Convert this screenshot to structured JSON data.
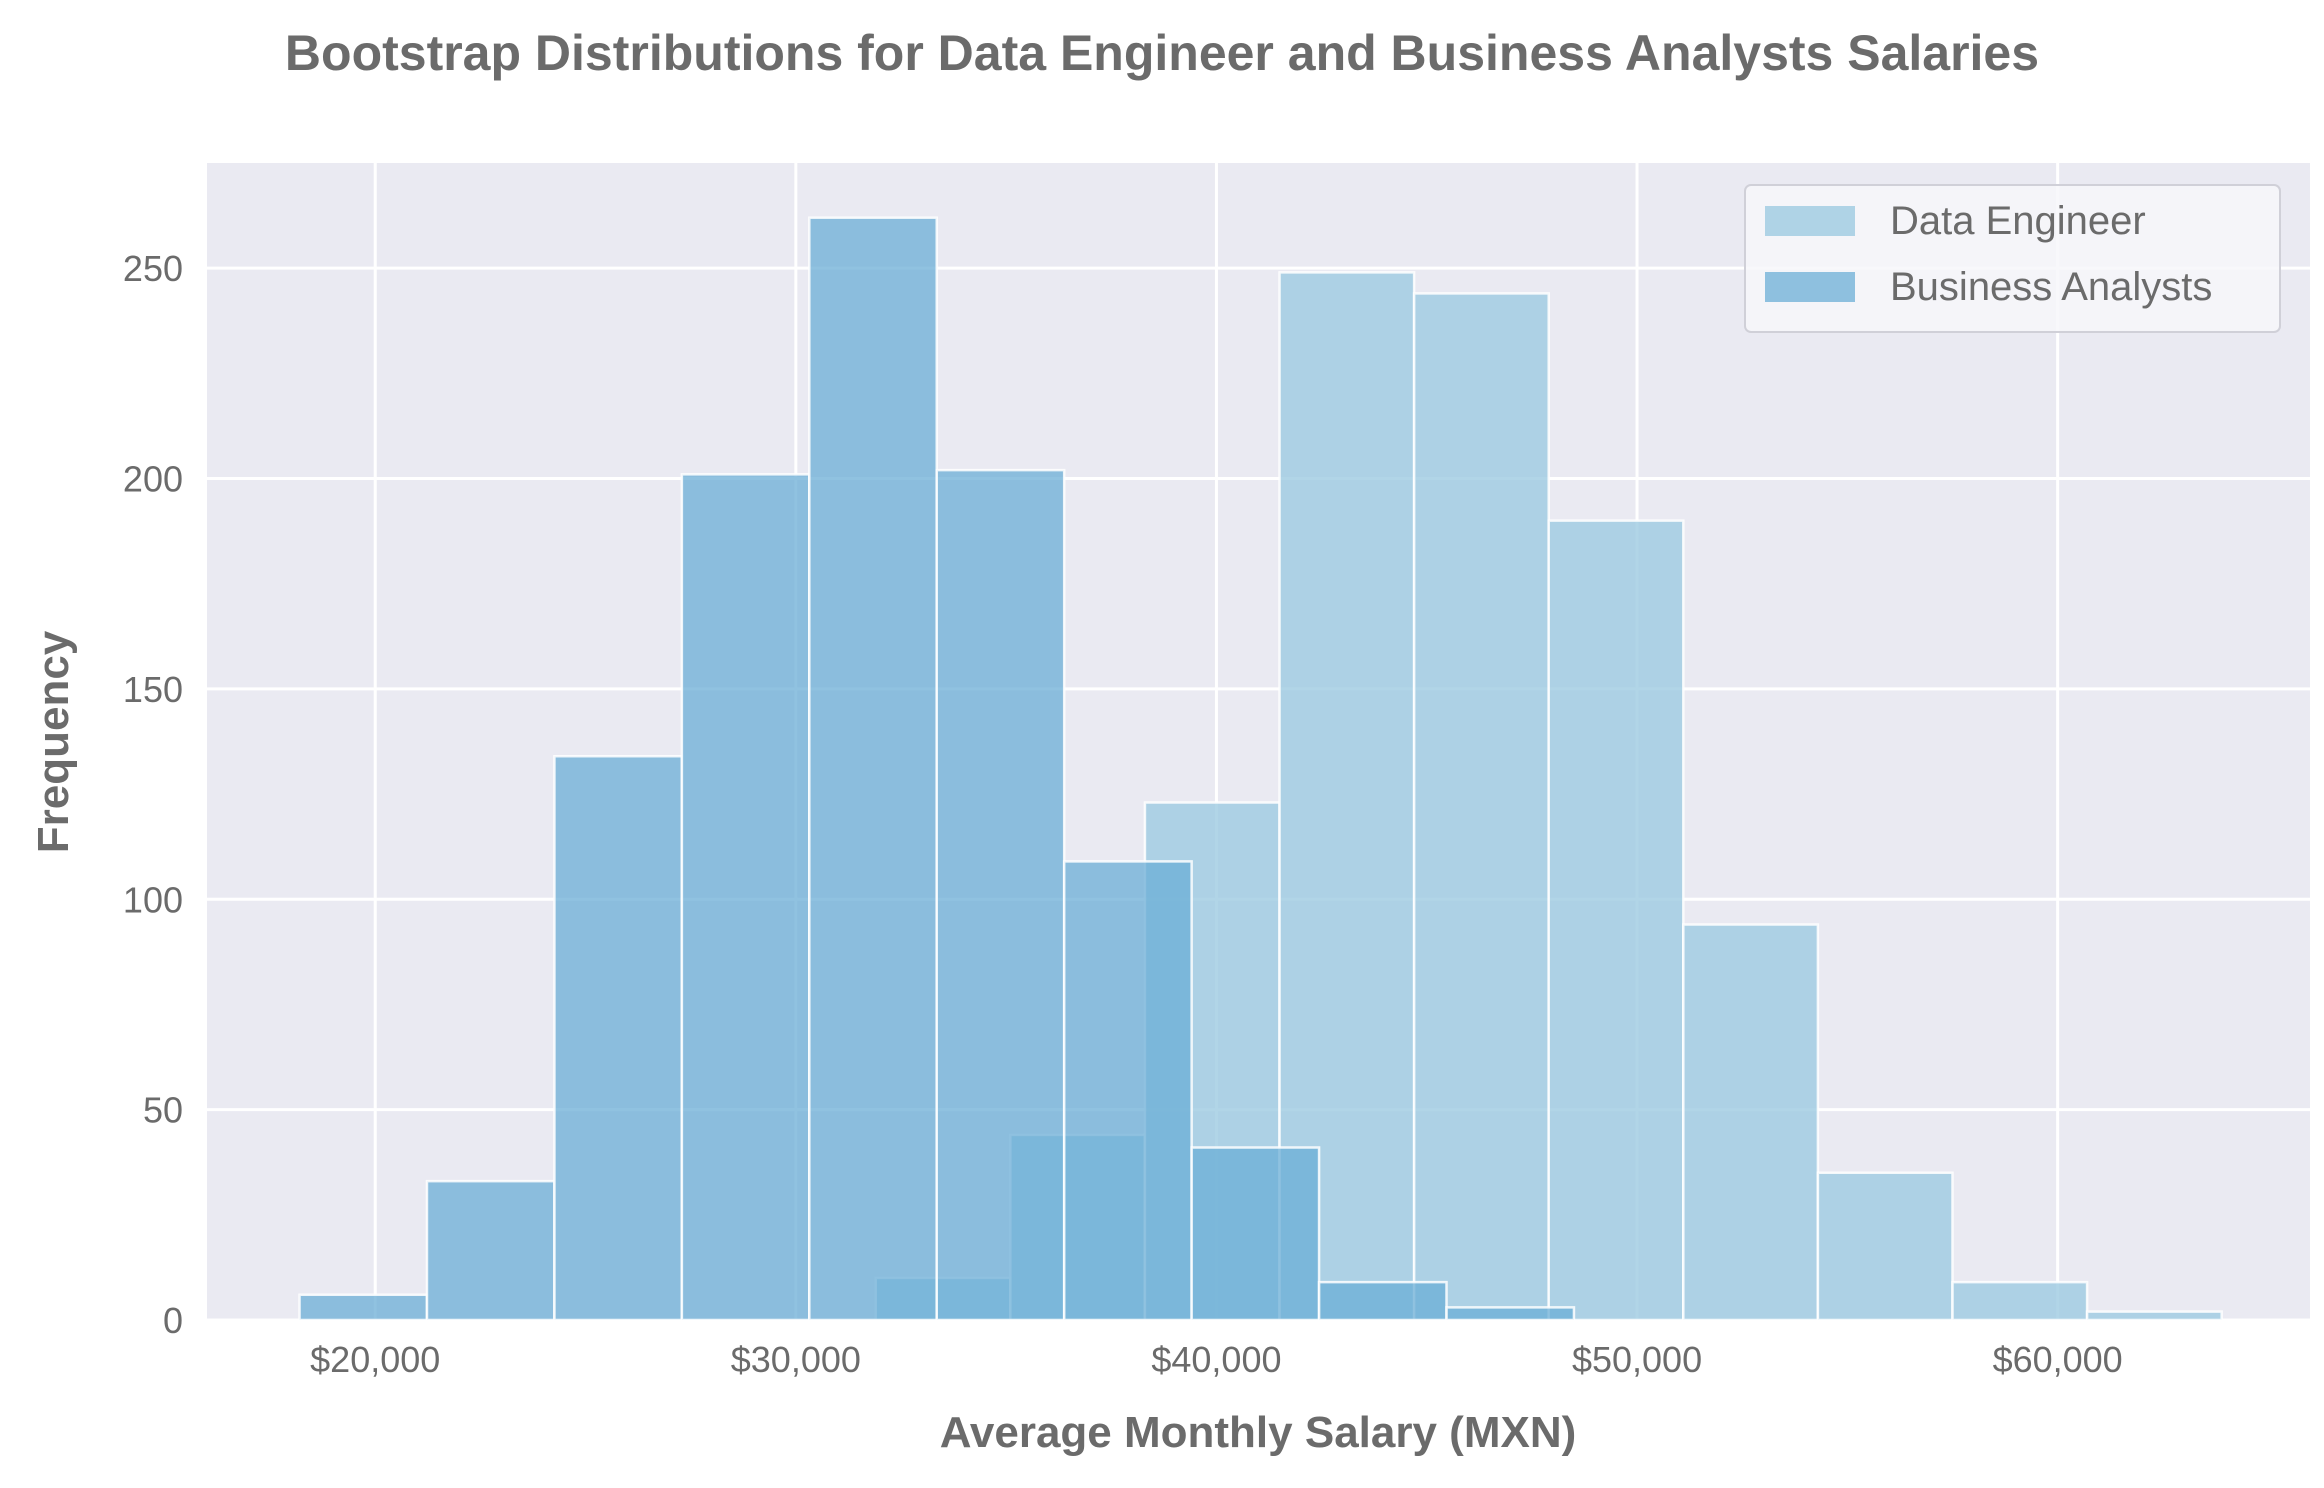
{
  "chart_data": {
    "type": "bar",
    "title": "Bootstrap Distributions for Data Engineer and Business Analysts Salaries",
    "xlabel": "Average Monthly Salary (MXN)",
    "ylabel": "Frequency",
    "xlim": [
      16000,
      66000
    ],
    "ylim": [
      0,
      275
    ],
    "x_ticks": [
      20000,
      30000,
      40000,
      50000,
      60000
    ],
    "x_tick_labels": [
      "$20,000",
      "$30,000",
      "$40,000",
      "$50,000",
      "$60,000"
    ],
    "y_ticks": [
      0,
      50,
      100,
      150,
      200,
      250
    ],
    "y_tick_labels": [
      "0",
      "50",
      "100",
      "150",
      "200",
      "250"
    ],
    "grid": true,
    "legend_position": "top-right",
    "series": [
      {
        "name": "Data Engineer",
        "color": "#9ecae1",
        "bins": [
          {
            "x0": 31900,
            "x1": 35100,
            "count": 10
          },
          {
            "x0": 35100,
            "x1": 38300,
            "count": 44
          },
          {
            "x0": 38300,
            "x1": 41500,
            "count": 123
          },
          {
            "x0": 41500,
            "x1": 44700,
            "count": 249
          },
          {
            "x0": 44700,
            "x1": 47900,
            "count": 244
          },
          {
            "x0": 47900,
            "x1": 51100,
            "count": 190
          },
          {
            "x0": 51100,
            "x1": 54300,
            "count": 94
          },
          {
            "x0": 54300,
            "x1": 57500,
            "count": 35
          },
          {
            "x0": 57500,
            "x1": 60700,
            "count": 9
          },
          {
            "x0": 60700,
            "x1": 63900,
            "count": 2
          }
        ]
      },
      {
        "name": "Business Analysts",
        "color": "#6baed6",
        "bins": [
          {
            "x0": 18200,
            "x1": 21230,
            "count": 6
          },
          {
            "x0": 21230,
            "x1": 24260,
            "count": 33
          },
          {
            "x0": 24260,
            "x1": 27290,
            "count": 134
          },
          {
            "x0": 27290,
            "x1": 30320,
            "count": 201
          },
          {
            "x0": 30320,
            "x1": 33350,
            "count": 262
          },
          {
            "x0": 33350,
            "x1": 36380,
            "count": 202
          },
          {
            "x0": 36380,
            "x1": 39410,
            "count": 109
          },
          {
            "x0": 39410,
            "x1": 42440,
            "count": 41
          },
          {
            "x0": 42440,
            "x1": 45470,
            "count": 9
          },
          {
            "x0": 45470,
            "x1": 48500,
            "count": 3
          }
        ]
      }
    ]
  }
}
